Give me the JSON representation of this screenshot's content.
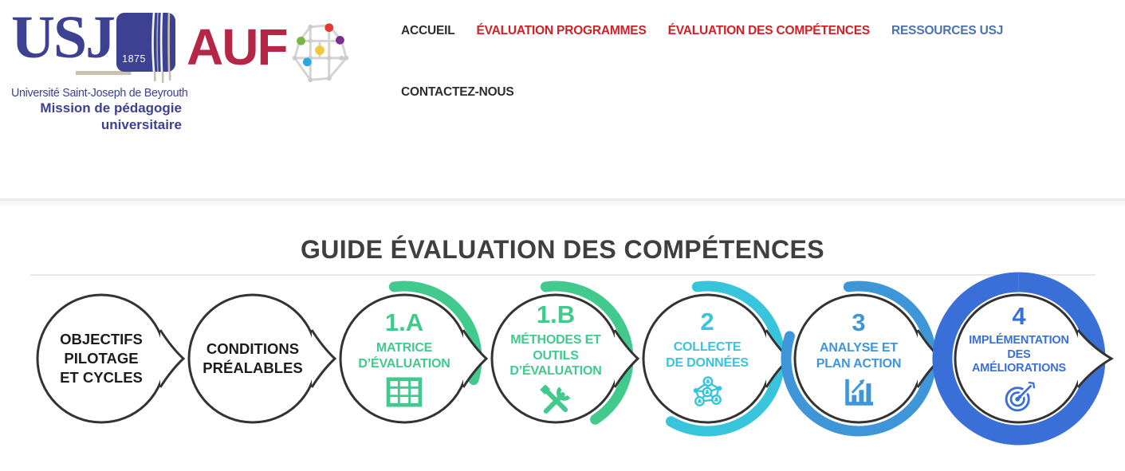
{
  "theme": {
    "navy": "#3c4191",
    "crimson": "#b42747",
    "title": "#3f3f3f"
  },
  "header": {
    "usj_logo": {
      "acronym": "USJ",
      "year": "1875",
      "line1": "Université Saint-Joseph de Beyrouth",
      "line2": "Mission de pédagogie",
      "line3": "universitaire"
    },
    "auf_logo": {
      "acronym": "AUF",
      "globe_icon": "network-globe-icon",
      "globe_dot_colors": [
        "#e8392e",
        "#76b643",
        "#7c2e8e",
        "#efc93f",
        "#2aa9e0"
      ]
    },
    "nav": {
      "items": [
        {
          "label": "ACCUEIL",
          "color": "#2d2d2d"
        },
        {
          "label": "ÉVALUATION PROGRAMMES",
          "color": "#cf2127"
        },
        {
          "label": "ÉVALUATION DES COMPÉTENCES",
          "color": "#cf2127"
        },
        {
          "label": "RESSOURCES USJ",
          "color": "#4d71ad"
        },
        {
          "label": "CONTACTEZ-NOUS",
          "color": "#2d2d2d"
        }
      ]
    }
  },
  "main": {
    "title": "GUIDE ÉVALUATION DES COMPÉTENCES",
    "flow": {
      "steps": [
        {
          "number": "",
          "label": "OBJECTIFS\nPILOTAGE\nET CYCLES",
          "color": "#1c1c1c",
          "ring": {
            "sweep_deg": 0,
            "color": null
          },
          "icon": null
        },
        {
          "number": "",
          "label": "CONDITIONS\nPRÉALABLES",
          "color": "#1c1c1c",
          "ring": {
            "sweep_deg": 0,
            "color": null
          },
          "icon": null
        },
        {
          "number": "1.A",
          "label": "MATRICE\nD’ÉVALUATION",
          "color": "#42c98d",
          "ring": {
            "sweep_deg": 115,
            "color": "#42c98d"
          },
          "icon": "table-icon"
        },
        {
          "number": "1.B",
          "label": "MÉTHODES ET\nOUTILS\nD’ÉVALUATION",
          "color": "#42c98d",
          "ring": {
            "sweep_deg": 155,
            "color": "#42c98d"
          },
          "icon": "tools-icon"
        },
        {
          "number": "2",
          "label": "COLLECTE\nDE DONNÉES",
          "color": "#38c5dc",
          "ring": {
            "sweep_deg": 218,
            "color": "#38c5dc"
          },
          "icon": "network-icon"
        },
        {
          "number": "3",
          "label": "ANALYSE ET\nPLAN ACTION",
          "color": "#3e96d9",
          "ring": {
            "sweep_deg": 296,
            "color": "#3e96d9"
          },
          "icon": "chart-icon"
        },
        {
          "number": "4",
          "label": "IMPLÉMENTATION\nDES\nAMÉLIORATIONS",
          "color": "#3b6fd8",
          "ring": {
            "sweep_deg": 360,
            "color": "#3b6fd8"
          },
          "icon": "target-icon"
        }
      ]
    }
  }
}
